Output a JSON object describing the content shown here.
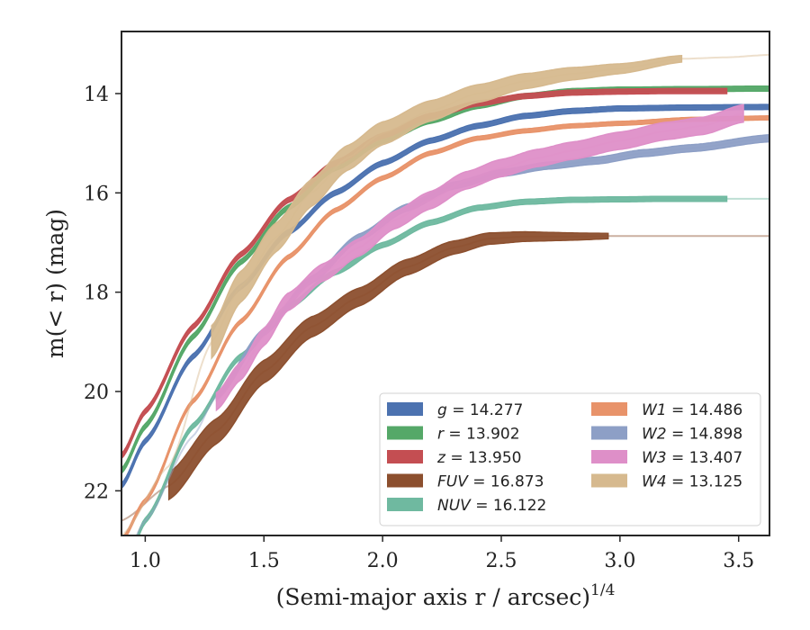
{
  "chart_data": {
    "type": "line",
    "title": "",
    "xlabel": "(Semi-major axis r / arcsec)",
    "xlabel_sup": "1/4",
    "ylabel": "m(< r) (mag)",
    "xlim": [
      0.9,
      3.63
    ],
    "ylim": [
      22.9,
      12.75
    ],
    "y_inverted": true,
    "x_ticks": [
      1.0,
      1.5,
      2.0,
      2.5,
      3.0,
      3.5
    ],
    "x_tick_labels": [
      "1.0",
      "1.5",
      "2.0",
      "2.5",
      "3.0",
      "3.5"
    ],
    "y_ticks": [
      14,
      16,
      18,
      20,
      22
    ],
    "y_tick_labels": [
      "14",
      "16",
      "18",
      "20",
      "22"
    ],
    "grid": false,
    "legend_position": "lower-right",
    "legend": [
      {
        "band": "g",
        "value": "14.277",
        "color": "#4c72b0"
      },
      {
        "band": "r",
        "value": "13.902",
        "color": "#55a868"
      },
      {
        "band": "z",
        "value": "13.950",
        "color": "#c44e52"
      },
      {
        "band": "FUV",
        "value": "16.873",
        "color": "#8c4f2e"
      },
      {
        "band": "NUV",
        "value": "16.122",
        "color": "#6fb9a0"
      },
      {
        "band": "W1",
        "value": "14.486",
        "color": "#e8936a"
      },
      {
        "band": "W2",
        "value": "14.898",
        "color": "#8d9fc6"
      },
      {
        "band": "W3",
        "value": "13.407",
        "color": "#de8fc8"
      },
      {
        "band": "W4",
        "value": "13.125",
        "color": "#d6b98e"
      }
    ],
    "series": [
      {
        "name": "g",
        "color": "#4c72b0",
        "band_width": 0.1,
        "x_end_band": 3.63,
        "x": [
          0.9,
          1.0,
          1.2,
          1.4,
          1.6,
          1.8,
          2.0,
          2.2,
          2.4,
          2.6,
          2.8,
          3.0,
          3.3,
          3.63
        ],
        "y": [
          21.9,
          21.0,
          19.3,
          17.9,
          16.8,
          16.0,
          15.4,
          14.95,
          14.65,
          14.45,
          14.35,
          14.3,
          14.28,
          14.27
        ]
      },
      {
        "name": "r",
        "color": "#55a868",
        "band_width": 0.1,
        "x_end_band": 3.63,
        "x": [
          0.9,
          1.0,
          1.2,
          1.4,
          1.6,
          1.8,
          2.0,
          2.2,
          2.4,
          2.6,
          2.8,
          3.0,
          3.3,
          3.63
        ],
        "y": [
          21.6,
          20.7,
          18.9,
          17.4,
          16.3,
          15.5,
          14.95,
          14.55,
          14.25,
          14.05,
          13.95,
          13.92,
          13.91,
          13.9
        ]
      },
      {
        "name": "z",
        "color": "#c44e52",
        "band_width": 0.1,
        "x_end_band": 3.45,
        "x": [
          0.9,
          1.0,
          1.2,
          1.4,
          1.6,
          1.8,
          2.0,
          2.2,
          2.4,
          2.6,
          2.8,
          3.0,
          3.2,
          3.45
        ],
        "y": [
          21.3,
          20.4,
          18.7,
          17.25,
          16.15,
          15.4,
          14.85,
          14.45,
          14.2,
          14.05,
          13.98,
          13.96,
          13.95,
          13.95
        ]
      },
      {
        "name": "FUV",
        "color": "#8c4f2e",
        "band_width": 0.55,
        "band_shrink": true,
        "x_start_band": 1.1,
        "x_end_band": 2.95,
        "x": [
          0.9,
          1.1,
          1.3,
          1.5,
          1.7,
          1.9,
          2.1,
          2.3,
          2.45,
          2.6,
          2.8,
          2.95,
          3.2,
          3.63
        ],
        "y": [
          22.6,
          21.9,
          20.8,
          19.6,
          18.7,
          18.1,
          17.5,
          17.1,
          16.92,
          16.88,
          16.88,
          16.87,
          16.87,
          16.87
        ]
      },
      {
        "name": "NUV",
        "color": "#6fb9a0",
        "band_width": 0.1,
        "x_end_band": 3.45,
        "x": [
          0.9,
          1.0,
          1.2,
          1.4,
          1.6,
          1.8,
          2.0,
          2.2,
          2.4,
          2.6,
          2.8,
          3.0,
          3.2,
          3.63
        ],
        "y": [
          23.8,
          22.6,
          20.7,
          19.3,
          18.3,
          17.6,
          17.05,
          16.6,
          16.3,
          16.18,
          16.14,
          16.13,
          16.12,
          16.12
        ]
      },
      {
        "name": "W1",
        "color": "#e8936a",
        "band_width": 0.08,
        "x_end_band": 3.63,
        "x": [
          0.9,
          1.0,
          1.2,
          1.4,
          1.6,
          1.8,
          2.0,
          2.2,
          2.4,
          2.6,
          2.8,
          3.0,
          3.3,
          3.63
        ],
        "y": [
          23.0,
          22.2,
          20.2,
          18.6,
          17.3,
          16.35,
          15.7,
          15.2,
          14.9,
          14.75,
          14.65,
          14.6,
          14.52,
          14.49
        ]
      },
      {
        "name": "W2",
        "color": "#8d9fc6",
        "band_width": 0.14,
        "x_start_band": 1.3,
        "x_end_band": 3.63,
        "x": [
          0.9,
          1.0,
          1.2,
          1.3,
          1.5,
          1.7,
          1.9,
          2.1,
          2.3,
          2.5,
          2.7,
          2.9,
          3.1,
          3.3,
          3.63
        ],
        "y": [
          23.5,
          22.6,
          20.9,
          20.1,
          18.8,
          17.75,
          16.9,
          16.3,
          15.85,
          15.6,
          15.45,
          15.35,
          15.2,
          15.1,
          14.9
        ]
      },
      {
        "name": "W3",
        "color": "#de8fc8",
        "band_width": 0.35,
        "x_start_band": 1.3,
        "x_end_band": 3.52,
        "x": [
          1.3,
          1.4,
          1.5,
          1.6,
          1.75,
          1.9,
          2.05,
          2.2,
          2.35,
          2.5,
          2.65,
          2.8,
          3.0,
          3.2,
          3.35,
          3.52
        ],
        "y": [
          20.2,
          19.6,
          18.9,
          18.2,
          17.6,
          17.1,
          16.55,
          16.15,
          15.75,
          15.5,
          15.3,
          15.15,
          14.95,
          14.75,
          14.65,
          14.4
        ]
      },
      {
        "name": "W4",
        "color": "#d6b98e",
        "band_width": 0.65,
        "band_shrink": true,
        "x_start_band": 1.28,
        "x_end_band": 3.26,
        "x": [
          0.9,
          1.1,
          1.28,
          1.4,
          1.55,
          1.7,
          1.85,
          2.0,
          2.2,
          2.4,
          2.6,
          2.8,
          3.0,
          3.26,
          3.45,
          3.63
        ],
        "y": [
          22.9,
          21.5,
          19.0,
          17.9,
          16.9,
          16.0,
          15.3,
          14.8,
          14.35,
          14.0,
          13.75,
          13.6,
          13.5,
          13.3,
          13.27,
          13.22
        ]
      }
    ]
  }
}
